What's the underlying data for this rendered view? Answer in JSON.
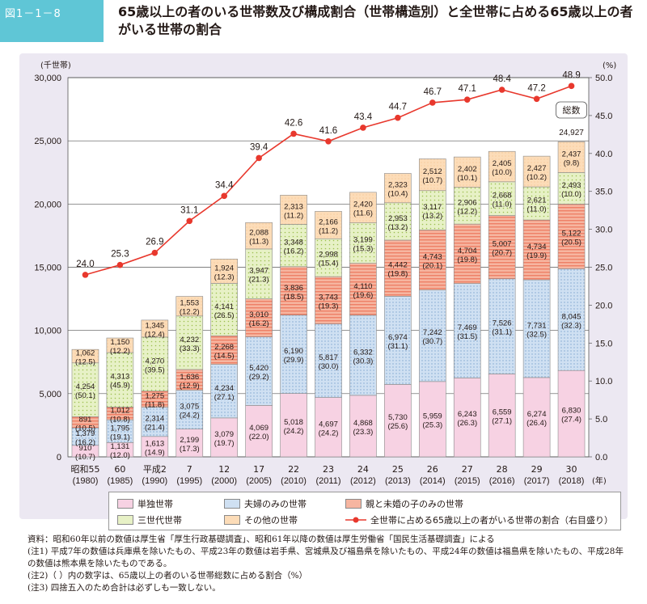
{
  "header": {
    "figure_no": "図1－1－8",
    "title": "65歳以上の者のいる世帯数及び構成割合（世帯構造別）と全世帯に占める65歳以上の者がいる世帯の割合"
  },
  "chart_data": {
    "type": "bar",
    "stacked": true,
    "y_left_unit": "(千世帯)",
    "y_right_unit": "(%)",
    "x_unit": "(年)",
    "ylim": [
      0,
      30000
    ],
    "y_ticks": [
      "0",
      "5,000",
      "10,000",
      "15,000",
      "20,000",
      "25,000",
      "30,000"
    ],
    "y2lim": [
      0,
      50
    ],
    "y2_ticks": [
      "0.0",
      "5.0",
      "10.0",
      "15.0",
      "20.0",
      "25.0",
      "30.0",
      "35.0",
      "40.0",
      "45.0",
      "50.0"
    ],
    "categories": [
      {
        "era": "昭和55",
        "year": "(1980)"
      },
      {
        "era": "60",
        "year": "(1985)"
      },
      {
        "era": "平成2",
        "year": "(1990)"
      },
      {
        "era": "7",
        "year": "(1995)"
      },
      {
        "era": "12",
        "year": "(2000)"
      },
      {
        "era": "17",
        "year": "(2005)"
      },
      {
        "era": "22",
        "year": "(2010)"
      },
      {
        "era": "23",
        "year": "(2011)"
      },
      {
        "era": "24",
        "year": "(2012)"
      },
      {
        "era": "25",
        "year": "(2013)"
      },
      {
        "era": "26",
        "year": "(2014)"
      },
      {
        "era": "27",
        "year": "(2015)"
      },
      {
        "era": "28",
        "year": "(2016)"
      },
      {
        "era": "29",
        "year": "(2017)"
      },
      {
        "era": "30",
        "year": "(2018)"
      }
    ],
    "series": [
      {
        "name": "単独世帯",
        "color": "#f5cfe0",
        "values": [
          910,
          1131,
          1613,
          2199,
          3079,
          4069,
          5018,
          4697,
          4868,
          5730,
          5959,
          6243,
          6559,
          6274,
          6830
        ],
        "labels": [
          "910",
          "1,131",
          "1,613",
          "2,199",
          "3,079",
          "4,069",
          "5,018",
          "4,697",
          "4,868",
          "5,730",
          "5,959",
          "6,243",
          "6,559",
          "6,274",
          "6,830"
        ],
        "pct": [
          "(10.7)",
          "(12.0)",
          "(14.9)",
          "(17.3)",
          "(19.7)",
          "(22.0)",
          "(24.2)",
          "(24.2)",
          "(23.3)",
          "(25.6)",
          "(25.3)",
          "(26.3)",
          "(27.1)",
          "(26.4)",
          "(27.4)"
        ]
      },
      {
        "name": "夫婦のみの世帯",
        "color": "#cfe0f2",
        "values": [
          1379,
          1795,
          2314,
          3075,
          4234,
          5420,
          6190,
          5817,
          6332,
          6974,
          7242,
          7469,
          7526,
          7731,
          8045
        ],
        "labels": [
          "1,379",
          "1,795",
          "2,314",
          "3,075",
          "4,234",
          "5,420",
          "6,190",
          "5,817",
          "6,332",
          "6,974",
          "7,242",
          "7,469",
          "7,526",
          "7,731",
          "8,045"
        ],
        "pct": [
          "(16.2)",
          "(19.1)",
          "(21.4)",
          "(24.2)",
          "(27.1)",
          "(29.2)",
          "(29.9)",
          "(30.0)",
          "(30.3)",
          "(31.1)",
          "(30.7)",
          "(31.5)",
          "(31.1)",
          "(32.5)",
          "(32.3)"
        ]
      },
      {
        "name": "親と未婚の子のみの世帯",
        "color": "#f5a58c",
        "values": [
          891,
          1012,
          1275,
          1636,
          2268,
          3010,
          3836,
          3743,
          4110,
          4442,
          4743,
          4704,
          5007,
          4734,
          5122
        ],
        "labels": [
          "891",
          "1,012",
          "1,275",
          "1,636",
          "2,268",
          "3,010",
          "3,836",
          "3,743",
          "4,110",
          "4,442",
          "4,743",
          "4,704",
          "5,007",
          "4,734",
          "5,122"
        ],
        "pct": [
          "(10.5)",
          "(10.8)",
          "(11.8)",
          "(12.9)",
          "(14.5)",
          "(16.2)",
          "(18.5)",
          "(19.3)",
          "(19.6)",
          "(19.8)",
          "(20.1)",
          "(19.8)",
          "(20.7)",
          "(19.9)",
          "(20.5)"
        ]
      },
      {
        "name": "三世代世帯",
        "color": "#e4efc0",
        "values": [
          4254,
          4313,
          4270,
          4232,
          4141,
          3947,
          3348,
          2998,
          3199,
          2953,
          3117,
          2906,
          2668,
          2621,
          2493
        ],
        "labels": [
          "4,254",
          "4,313",
          "4,270",
          "4,232",
          "4,141",
          "3,947",
          "3,348",
          "2,998",
          "3,199",
          "2,953",
          "3,117",
          "2,906",
          "2,668",
          "2,621",
          "2,493"
        ],
        "pct": [
          "(50.1)",
          "(45.9)",
          "(39.5)",
          "(33.3)",
          "(26.5)",
          "(21.3)",
          "(16.2)",
          "(15.4)",
          "(15.3)",
          "(13.2)",
          "(13.2)",
          "(12.2)",
          "(11.0)",
          "(11.0)",
          "(10.0)"
        ]
      },
      {
        "name": "その他の世帯",
        "color": "#fbdfc0",
        "values": [
          1062,
          1150,
          1345,
          1553,
          1924,
          2088,
          2313,
          2166,
          2420,
          2323,
          2512,
          2402,
          2405,
          2427,
          2437
        ],
        "labels": [
          "1,062",
          "1,150",
          "1,345",
          "1,553",
          "1,924",
          "2,088",
          "2,313",
          "2,166",
          "2,420",
          "2,323",
          "2,512",
          "2,402",
          "2,405",
          "2,427",
          "2,437"
        ],
        "pct": [
          "(12.5)",
          "(12.2)",
          "(12.4)",
          "(12.2)",
          "(12.3)",
          "(11.3)",
          "(11.2)",
          "(11.2)",
          "(11.6)",
          "(10.4)",
          "(10.7)",
          "(10.1)",
          "(10.0)",
          "(10.2)",
          "(9.8)"
        ]
      }
    ],
    "line": {
      "name": "全世帯に占める65歳以上の者がいる世帯の割合（右目盛り）",
      "color": "#e8382d",
      "values": [
        24.0,
        25.3,
        26.9,
        31.1,
        34.4,
        39.4,
        42.6,
        41.6,
        43.4,
        44.7,
        46.7,
        47.1,
        48.4,
        47.2,
        48.9
      ],
      "labels": [
        "24.0",
        "25.3",
        "26.9",
        "31.1",
        "34.4",
        "39.4",
        "42.6",
        "41.6",
        "43.4",
        "44.7",
        "46.7",
        "47.1",
        "48.4",
        "47.2",
        "48.9"
      ]
    },
    "total_callout": {
      "label": "総数",
      "value": "24,927"
    }
  },
  "notes": [
    "資料：昭和60年以前の数値は厚生省「厚生行政基礎調査」、昭和61年以降の数値は厚生労働省「国民生活基礎調査」による",
    "(注1) 平成7年の数値は兵庫県を除いたもの、平成23年の数値は岩手県、宮城県及び福島県を除いたもの、平成24年の数値は福島県を除いたもの、平成28年の数値は熊本県を除いたものである。",
    "(注2)（ ）内の数字は、65歳以上の者のいる世帯総数に占める割合（%）",
    "(注3) 四捨五入のため合計は必ずしも一致しない。"
  ]
}
